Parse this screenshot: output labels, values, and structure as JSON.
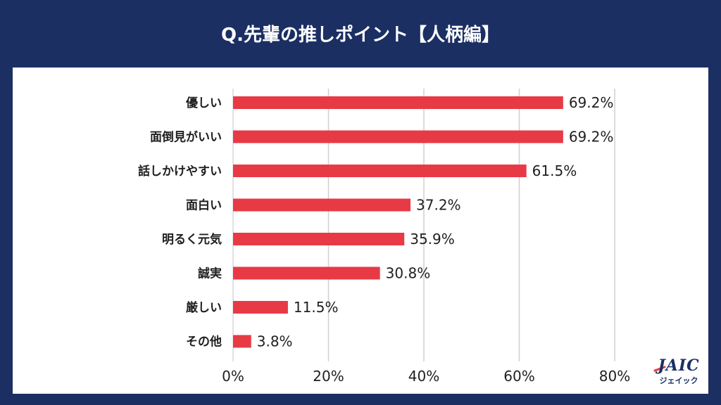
{
  "header": {
    "title": "Q.先輩の推しポイント【人柄編】"
  },
  "logo": {
    "main": "JAIC",
    "sub": "ジェイック"
  },
  "colors": {
    "background": "#1b2f63",
    "bar": "#e83a45",
    "panel": "#ffffff"
  },
  "chart_data": {
    "type": "bar",
    "orientation": "horizontal",
    "title": "Q.先輩の推しポイント【人柄編】",
    "categories": [
      "優しい",
      "面倒見がいい",
      "話しかけやすい",
      "面白い",
      "明るく元気",
      "誠実",
      "厳しい",
      "その他"
    ],
    "values": [
      69.2,
      69.2,
      61.5,
      37.2,
      35.9,
      30.8,
      11.5,
      3.8
    ],
    "value_labels": [
      "69.2%",
      "69.2%",
      "61.5%",
      "37.2%",
      "35.9%",
      "30.8%",
      "11.5%",
      "3.8%"
    ],
    "xlim": [
      0,
      80
    ],
    "xticks": [
      0,
      20,
      40,
      60,
      80
    ],
    "xtick_labels": [
      "0%",
      "20%",
      "40%",
      "60%",
      "80%"
    ],
    "grid": true,
    "legend": "none"
  }
}
